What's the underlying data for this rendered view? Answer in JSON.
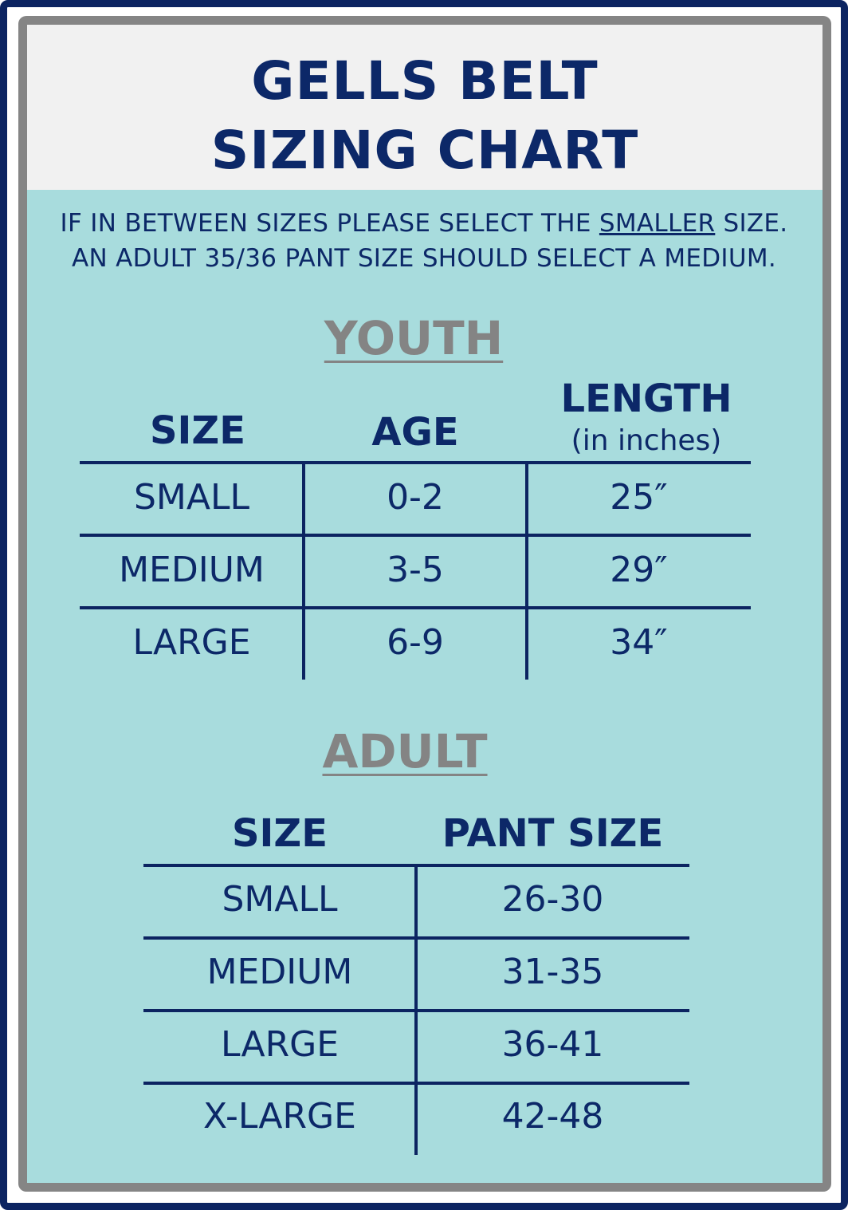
{
  "title": {
    "line1": "GELLS BELT",
    "line2": "SIZING CHART"
  },
  "note": {
    "line1_pre": "IF IN BETWEEN SIZES PLEASE SELECT THE ",
    "line1_emph": "SMALLER",
    "line1_post": " SIZE.",
    "line2": "AN ADULT 35/36 PANT SIZE SHOULD SELECT A MEDIUM."
  },
  "youth": {
    "heading": "YOUTH",
    "headers": {
      "size": "SIZE",
      "age": "AGE",
      "length": "LENGTH",
      "length_unit": "(in inches)"
    },
    "rows": [
      {
        "size": "SMALL",
        "age": "0-2",
        "length": "25″"
      },
      {
        "size": "MEDIUM",
        "age": "3-5",
        "length": "29″"
      },
      {
        "size": "LARGE",
        "age": "6-9",
        "length": "34″"
      }
    ]
  },
  "adult": {
    "heading": "ADULT",
    "headers": {
      "size": "SIZE",
      "pant": "PANT SIZE"
    },
    "rows": [
      {
        "size": "SMALL",
        "pant": "26-30"
      },
      {
        "size": "MEDIUM",
        "pant": "31-35"
      },
      {
        "size": "LARGE",
        "pant": "36-41"
      },
      {
        "size": "X-LARGE",
        "pant": "42-48"
      }
    ]
  },
  "colors": {
    "navy": "#0c2461",
    "teal": "#a8dcdd",
    "gray": "#858585",
    "header_bg": "#f1f1f1"
  }
}
